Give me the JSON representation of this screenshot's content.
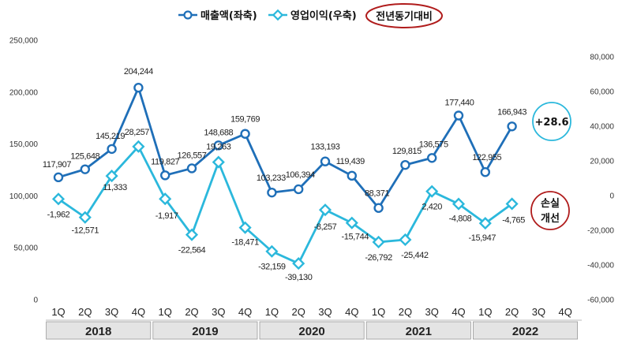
{
  "chart_data": {
    "type": "line",
    "categories": [
      "1Q",
      "2Q",
      "3Q",
      "4Q",
      "1Q",
      "2Q",
      "3Q",
      "4Q",
      "1Q",
      "2Q",
      "3Q",
      "4Q",
      "1Q",
      "2Q",
      "3Q",
      "4Q",
      "1Q",
      "2Q",
      "3Q",
      "4Q"
    ],
    "years": [
      "2018",
      "2019",
      "2020",
      "2021",
      "2022"
    ],
    "series": [
      {
        "name": "매출액(좌축)",
        "axis": "left",
        "color": "#1f6fb8",
        "values": [
          117907,
          125648,
          145219,
          204244,
          119827,
          126557,
          148688,
          159769,
          103233,
          106394,
          133193,
          119439,
          88371,
          129815,
          136575,
          177440,
          122955,
          166943,
          null,
          null
        ],
        "labels": [
          "117,907",
          "125,648",
          "145,219",
          "204,244",
          "119,827",
          "126,557",
          "148,688",
          "159,769",
          "103,233",
          "106,394",
          "133,193",
          "119,439",
          "88,371",
          "129,815",
          "136,575",
          "177,440",
          "122,955",
          "166,943",
          "",
          ""
        ]
      },
      {
        "name": "영업이익(우축)",
        "axis": "right",
        "color": "#2bb8dc",
        "values": [
          -1962,
          -12571,
          11333,
          28257,
          -1917,
          -22564,
          19263,
          -18471,
          -32159,
          -39130,
          -8257,
          -15744,
          -26792,
          -25442,
          2420,
          -4808,
          -15947,
          -4765,
          null,
          null
        ],
        "labels": [
          "-1,962",
          "-12,571",
          "11,333",
          "28,257",
          "-1,917",
          "-22,564",
          "19,263",
          "-18,471",
          "-32,159",
          "-39,130",
          "-8,257",
          "-15,744",
          "-26,792",
          "-25,442",
          "2,420",
          "-4,808",
          "-15,947",
          "-4,765",
          "",
          ""
        ]
      }
    ],
    "left_axis": {
      "min": 0,
      "max": 250000,
      "ticks": [
        "0",
        "50,000",
        "100,000",
        "150,000",
        "200,000",
        "250,000"
      ]
    },
    "right_axis": {
      "min": -60000,
      "max": 80000,
      "ticks": [
        "-60,000",
        "-40,000",
        "-20,000",
        "0",
        "20,000",
        "40,000",
        "60,000",
        "80,000"
      ]
    },
    "legend": {
      "position": "top-center",
      "highlight": "전년동기대비"
    },
    "annotations": [
      {
        "text": "+28.6",
        "color": "#2bb8dc"
      },
      {
        "text": "손실 개선",
        "line1": "손실",
        "line2": "개선",
        "color": "#b01c1c"
      }
    ]
  }
}
